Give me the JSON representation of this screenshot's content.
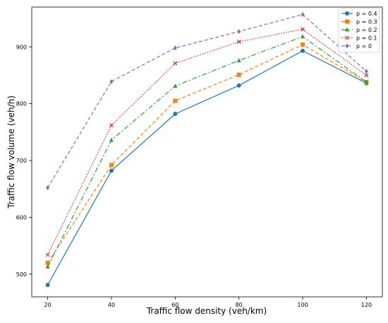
{
  "chart_data": {
    "type": "line",
    "title": "",
    "xlabel": "Traffic flow density (veh/km)",
    "ylabel": "Traffic flow volume (veh/h)",
    "x": [
      20,
      40,
      60,
      80,
      100,
      120
    ],
    "xticks": [
      "20",
      "40",
      "60",
      "80",
      "100",
      "120"
    ],
    "yticks": [
      "500",
      "600",
      "700",
      "800",
      "900"
    ],
    "xlim": [
      15,
      125
    ],
    "ylim": [
      460,
      970
    ],
    "grid": false,
    "legend_position": "top-right",
    "series": [
      {
        "name": "p = 0.4",
        "values": [
          481,
          682,
          782,
          832,
          893,
          836
        ],
        "color": "#1f77b4",
        "linestyle": "solid",
        "marker": "circle"
      },
      {
        "name": "p = 0.3",
        "values": [
          520,
          692,
          805,
          851,
          904,
          838
        ],
        "color": "#ff7f0e",
        "linestyle": "dashed",
        "marker": "square"
      },
      {
        "name": "p = 0.2",
        "values": [
          513,
          736,
          831,
          876,
          918,
          838
        ],
        "color": "#2ca02c",
        "linestyle": "dashdot",
        "marker": "triangle"
      },
      {
        "name": "p = 0.1",
        "values": [
          534,
          762,
          871,
          909,
          931,
          850
        ],
        "color": "#d62728",
        "linestyle": "dotted",
        "marker": "x"
      },
      {
        "name": "p = 0",
        "values": [
          652,
          839,
          898,
          927,
          957,
          857
        ],
        "color": "#9467bd",
        "linestyle": "dashed",
        "marker": "diamond"
      }
    ]
  }
}
